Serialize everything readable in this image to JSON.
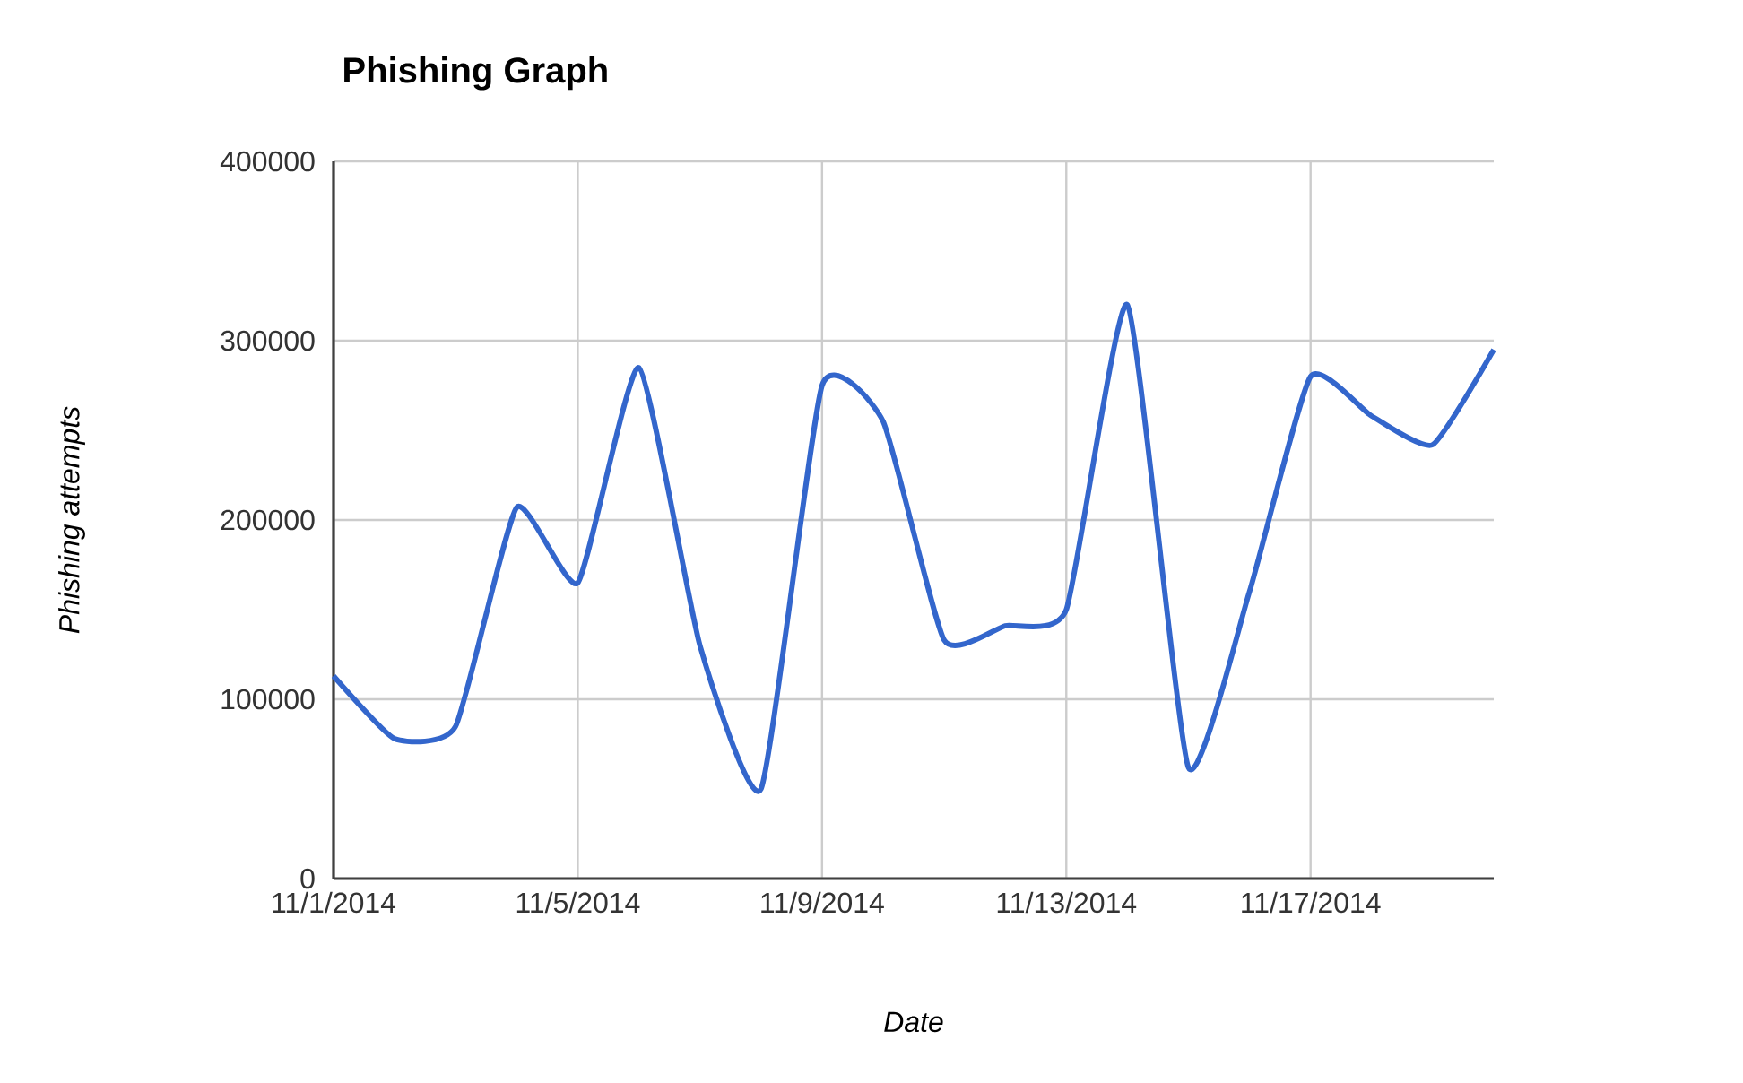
{
  "chart_data": {
    "type": "line",
    "title": "Phishing Graph",
    "xlabel": "Date",
    "ylabel": "Phishing attempts",
    "x": [
      "2014-11-01",
      "2014-11-02",
      "2014-11-03",
      "2014-11-04",
      "2014-11-05",
      "2014-11-06",
      "2014-11-07",
      "2014-11-08",
      "2014-11-09",
      "2014-11-10",
      "2014-11-11",
      "2014-11-12",
      "2014-11-13",
      "2014-11-14",
      "2014-11-15",
      "2014-11-16",
      "2014-11-17",
      "2014-11-18",
      "2014-11-19",
      "2014-11-20"
    ],
    "series": [
      {
        "color": "#3366cc",
        "values": [
          113000,
          78000,
          85000,
          207000,
          165000,
          285000,
          130000,
          50000,
          275000,
          255000,
          133000,
          141000,
          150000,
          320000,
          62000,
          160000,
          280000,
          258000,
          242000,
          295000
        ]
      }
    ],
    "xlim": [
      "2014-11-01",
      "2014-11-20"
    ],
    "xticks": [
      {
        "value": "2014-11-01",
        "label": "11/1/2014"
      },
      {
        "value": "2014-11-05",
        "label": "11/5/2014"
      },
      {
        "value": "2014-11-09",
        "label": "11/9/2014"
      },
      {
        "value": "2014-11-13",
        "label": "11/13/2014"
      },
      {
        "value": "2014-11-17",
        "label": "11/17/2014"
      }
    ],
    "ylim": [
      0,
      400000
    ],
    "yticks": [
      0,
      100000,
      200000,
      300000,
      400000
    ],
    "grid": true,
    "legend": false,
    "marker": "none",
    "line_style": "solid"
  }
}
